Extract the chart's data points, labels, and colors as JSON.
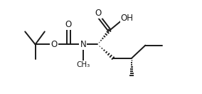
{
  "bg_color": "#ffffff",
  "line_color": "#1a1a1a",
  "lw": 1.4,
  "fs": 8.5,
  "figsize": [
    2.84,
    1.32
  ],
  "dpi": 100,
  "xlim": [
    0,
    10.5
  ],
  "ylim": [
    0,
    5.5
  ]
}
